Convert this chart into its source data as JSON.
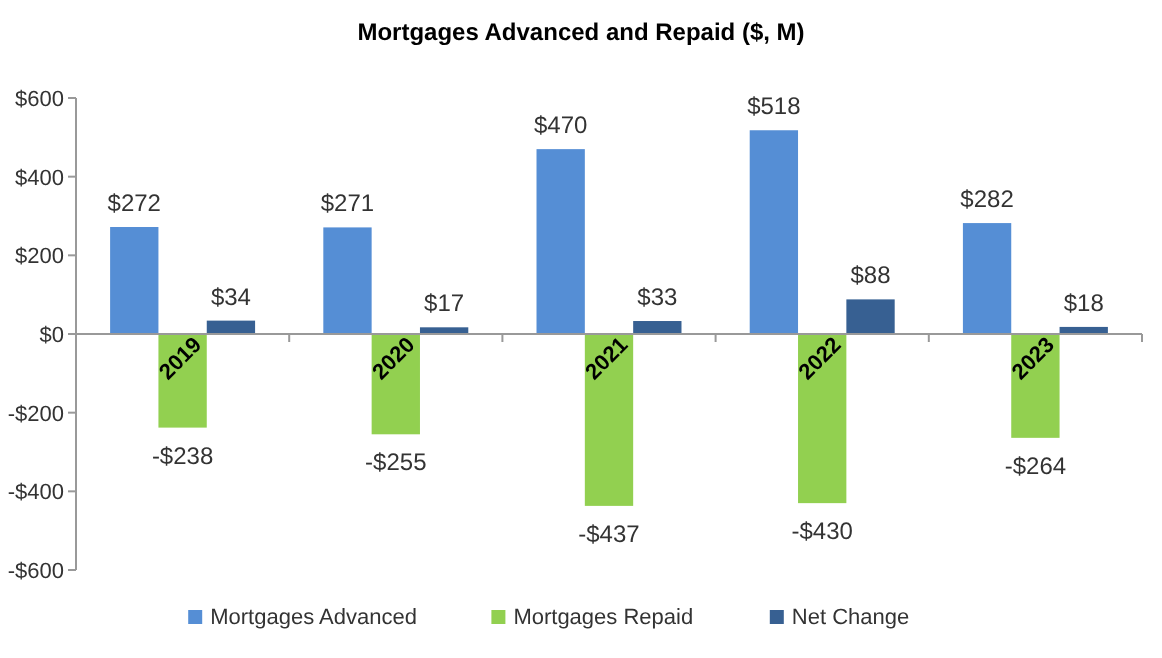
{
  "chart_data": {
    "type": "bar",
    "title": "Mortgages Advanced and Repaid ($, M)",
    "categories": [
      "2019",
      "2020",
      "2021",
      "2022",
      "2023"
    ],
    "series": [
      {
        "name": "Mortgages Advanced",
        "color": "#558ed5",
        "values": [
          272,
          271,
          470,
          518,
          282
        ],
        "value_labels": [
          "$272",
          "$271",
          "$470",
          "$518",
          "$282"
        ]
      },
      {
        "name": "Mortgages Repaid",
        "color": "#92d050",
        "values": [
          -238,
          -255,
          -437,
          -430,
          -264
        ],
        "value_labels": [
          "-$238",
          "-$255",
          "-$437",
          "-$430",
          "-$264"
        ]
      },
      {
        "name": "Net Change",
        "color": "#376092",
        "values": [
          34,
          17,
          33,
          88,
          18
        ],
        "value_labels": [
          "$34",
          "$17",
          "$33",
          "$88",
          "$18"
        ]
      }
    ],
    "ylim": [
      -600,
      600
    ],
    "yticks": [
      {
        "value": -600,
        "label": "-$600"
      },
      {
        "value": -400,
        "label": "-$400"
      },
      {
        "value": -200,
        "label": "-$200"
      },
      {
        "value": 0,
        "label": "$0"
      },
      {
        "value": 200,
        "label": "$200"
      },
      {
        "value": 400,
        "label": "$400"
      },
      {
        "value": 600,
        "label": "$600"
      }
    ],
    "grid": false,
    "legend": "bottom"
  }
}
